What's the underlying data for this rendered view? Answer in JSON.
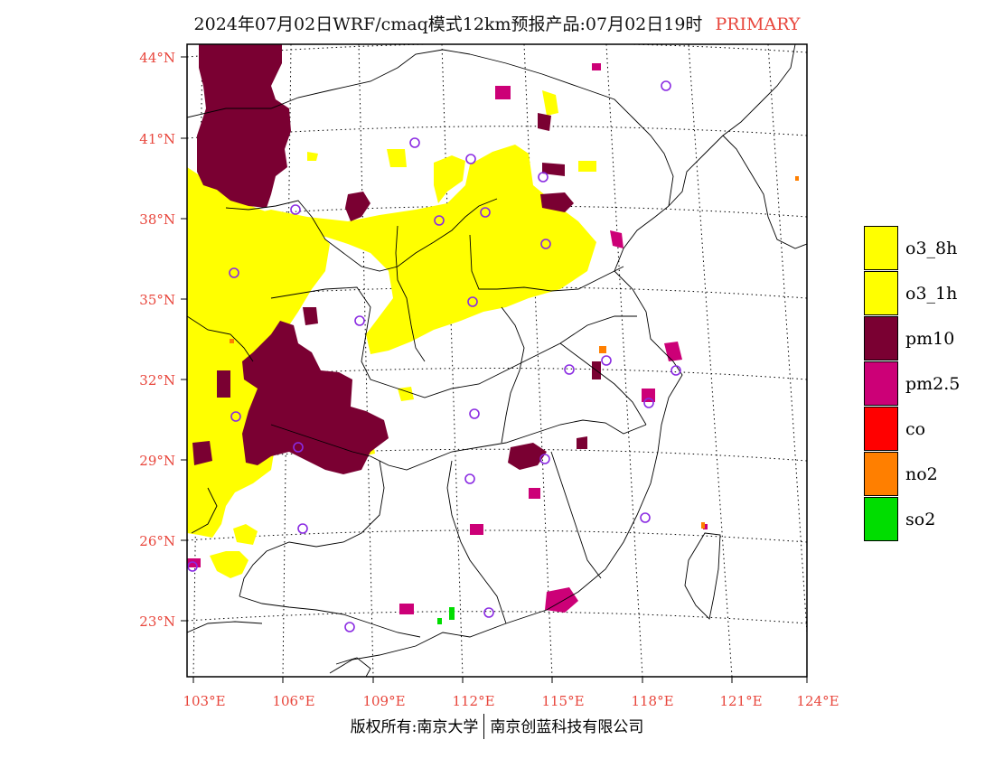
{
  "title": {
    "text": "2024年07月02日WRF/cmaq模式12km预报产品:07月02日19时",
    "badge": "PRIMARY"
  },
  "map": {
    "lat_labels": [
      "44°N",
      "41°N",
      "38°N",
      "35°N",
      "32°N",
      "29°N",
      "26°N",
      "23°N"
    ],
    "lon_labels": [
      "103°E",
      "106°E",
      "109°E",
      "112°E",
      "115°E",
      "118°E",
      "121°E",
      "124°E"
    ],
    "lat_range": [
      21,
      45
    ],
    "lon_range": [
      103,
      124
    ],
    "gridlines": true,
    "colors": {
      "o3_8h": "#ffff00",
      "o3_1h": "#ffff00",
      "pm10": "#7a0032",
      "pm2.5": "#cc0077",
      "co": "#ff0000",
      "no2": "#ff7f00",
      "so2": "#00dd00",
      "station": "#8a2be2",
      "tick_label": "#e8463c"
    }
  },
  "legend": {
    "items": [
      {
        "label": "o3_8h",
        "color": "#ffff00"
      },
      {
        "label": "o3_1h",
        "color": "#ffff00"
      },
      {
        "label": "pm10",
        "color": "#7a0032"
      },
      {
        "label": "pm2.5",
        "color": "#cc0077"
      },
      {
        "label": "co",
        "color": "#ff0000"
      },
      {
        "label": "no2",
        "color": "#ff7f00"
      },
      {
        "label": "so2",
        "color": "#00dd00"
      }
    ]
  },
  "footer": {
    "left": "版权所有:南京大学",
    "right": "南京创蓝科技有限公司"
  }
}
